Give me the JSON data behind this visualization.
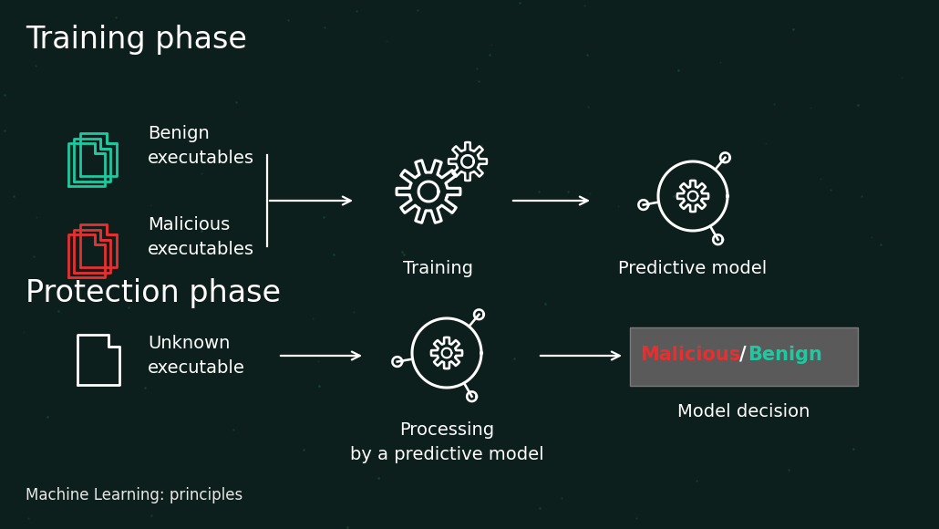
{
  "bg_color": "#0d1f1c",
  "title_training": "Training phase",
  "title_protection": "Protection phase",
  "footer_text": "Machine Learning: principles",
  "benign_label": "Benign\nexecutables",
  "malicious_label": "Malicious\nexecutables",
  "unknown_label": "Unknown\nexecutable",
  "training_label": "Training",
  "predictive_model_label": "Predictive model",
  "processing_label": "Processing\nby a predictive model",
  "model_decision_label": "Model decision",
  "malicious_text": "Malicious",
  "benign_text": "Benign",
  "slash_text": "/",
  "benign_color": "#1ec8a0",
  "malicious_color": "#e63030",
  "white_color": "#ffffff",
  "decision_box_color": "#636363",
  "arrow_color": "#ffffff",
  "title_fontsize": 24,
  "label_fontsize": 14,
  "sub_fontsize": 13,
  "footer_fontsize": 12
}
